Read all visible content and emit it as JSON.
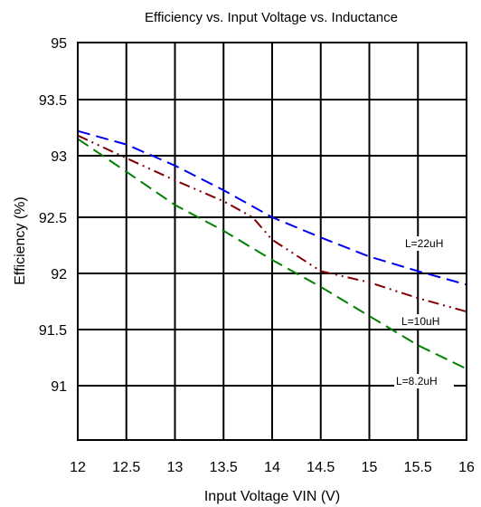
{
  "chart_data": {
    "type": "line",
    "title": "Efficiency vs. Input Voltage vs. Inductance",
    "xlabel": "Input Voltage VIN (V)",
    "ylabel": "Efficiency  (%)",
    "xlim": [
      12,
      16
    ],
    "ylim": [
      90.5,
      95
    ],
    "x_ticks": [
      "12",
      "12.5",
      "13",
      "13.5",
      "14",
      "14.5",
      "15",
      "15.5",
      "16"
    ],
    "y_ticks": [
      "95",
      "93.5",
      "93",
      "92.5",
      "92",
      "91.5",
      "91"
    ],
    "grid": true,
    "series": [
      {
        "name": "L=22uH",
        "color": "#0000ee",
        "dash": "dashed",
        "x": [
          12,
          12.5,
          13,
          13.5,
          14,
          14.5,
          15,
          15.5,
          16
        ],
        "y": [
          93.22,
          93.1,
          92.92,
          92.72,
          92.5,
          92.32,
          92.15,
          92.02,
          91.9
        ]
      },
      {
        "name": "L=10uH",
        "color": "#800000",
        "dash": "dash-dot-dot",
        "x": [
          12,
          12.5,
          13,
          13.5,
          13.8,
          14,
          14.5,
          15,
          15.5,
          16
        ],
        "y": [
          93.18,
          92.98,
          92.8,
          92.63,
          92.5,
          92.3,
          92.02,
          91.92,
          91.78,
          91.66
        ]
      },
      {
        "name": "L=8.2uH",
        "color": "#008000",
        "dash": "dashed",
        "x": [
          12,
          12.5,
          13,
          13.5,
          14,
          14.5,
          15,
          15.5,
          16
        ],
        "y": [
          93.15,
          92.87,
          92.6,
          92.38,
          92.12,
          91.88,
          91.62,
          91.36,
          91.15
        ]
      }
    ]
  }
}
